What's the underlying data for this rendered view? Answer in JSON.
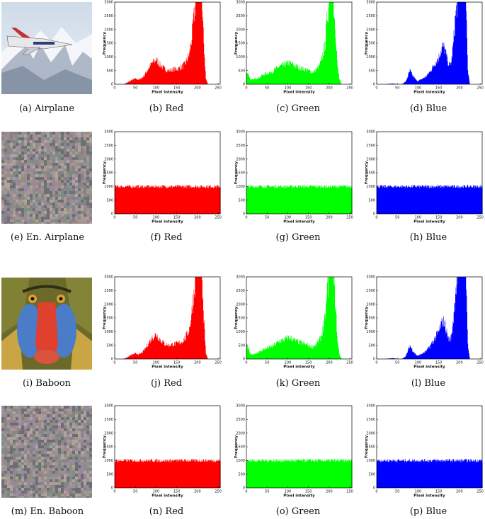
{
  "captions": {
    "row1": [
      "(a) Airplane",
      "(b) Red",
      "(c) Green",
      "(d) Blue"
    ],
    "row2": [
      "(e) En. Airplane",
      "(f) Red",
      "(g) Green",
      "(h) Blue"
    ],
    "row3": [
      "(i) Baboon",
      "(j) Red",
      "(k) Green",
      "(l) Blue"
    ],
    "row4": [
      "(m) En. Baboon",
      "(n) Red",
      "(o) Green",
      "(p) Blue"
    ]
  },
  "axes": {
    "xlabel": "Pixel intensity",
    "ylabel": "Frequency",
    "xticks": [
      "0",
      "50",
      "100",
      "150",
      "200",
      "250"
    ],
    "yticks": [
      "0",
      "500",
      "1000",
      "1500",
      "2000",
      "2500",
      "3000"
    ]
  },
  "colors": {
    "red": "#ff0000",
    "green": "#00ff00",
    "blue": "#0000ff"
  },
  "images": {
    "airplane": "airplane-photo",
    "baboon": "baboon-photo",
    "encrypted": "noise-image"
  },
  "chart_data": [
    {
      "type": "area",
      "id": "b",
      "title": "(b) Red",
      "xlim": [
        0,
        255
      ],
      "ylim": [
        0,
        3000
      ],
      "x": [
        0,
        20,
        30,
        40,
        50,
        60,
        70,
        80,
        90,
        100,
        110,
        120,
        130,
        140,
        150,
        160,
        170,
        180,
        185,
        190,
        195,
        200,
        205,
        210,
        215,
        220,
        225,
        230,
        255
      ],
      "y": [
        0,
        0,
        60,
        150,
        200,
        170,
        300,
        550,
        780,
        900,
        700,
        560,
        500,
        540,
        560,
        620,
        750,
        1100,
        1600,
        2300,
        3000,
        3000,
        3000,
        3000,
        1500,
        200,
        0,
        0,
        0
      ]
    },
    {
      "type": "area",
      "id": "c",
      "title": "(c) Green",
      "xlim": [
        0,
        255
      ],
      "ylim": [
        0,
        3000
      ],
      "x": [
        0,
        5,
        10,
        20,
        30,
        40,
        50,
        60,
        70,
        80,
        90,
        100,
        110,
        120,
        130,
        140,
        150,
        160,
        170,
        180,
        190,
        195,
        200,
        205,
        210,
        215,
        220,
        225,
        230,
        235,
        255
      ],
      "y": [
        500,
        350,
        150,
        200,
        250,
        350,
        400,
        450,
        550,
        650,
        700,
        780,
        750,
        650,
        600,
        550,
        500,
        450,
        550,
        800,
        1500,
        2500,
        3000,
        3000,
        3000,
        2000,
        600,
        150,
        0,
        0,
        0
      ]
    },
    {
      "type": "area",
      "id": "d",
      "title": "(d) Blue",
      "xlim": [
        0,
        255
      ],
      "ylim": [
        0,
        3000
      ],
      "x": [
        0,
        20,
        30,
        40,
        50,
        60,
        70,
        75,
        80,
        85,
        90,
        95,
        100,
        110,
        120,
        130,
        140,
        150,
        155,
        160,
        165,
        170,
        175,
        180,
        185,
        190,
        195,
        200,
        205,
        210,
        215,
        220,
        225,
        230,
        255
      ],
      "y": [
        0,
        0,
        20,
        30,
        0,
        0,
        100,
        300,
        500,
        350,
        250,
        150,
        120,
        200,
        300,
        500,
        750,
        1000,
        1250,
        1400,
        1250,
        900,
        700,
        800,
        1500,
        2500,
        3000,
        3000,
        3000,
        3000,
        3000,
        500,
        0,
        0,
        0
      ]
    },
    {
      "type": "area",
      "id": "f",
      "title": "(f) Red",
      "xlim": [
        0,
        255
      ],
      "ylim": [
        0,
        3000
      ],
      "x": [
        0,
        255
      ],
      "y": [
        1000,
        1000
      ]
    },
    {
      "type": "area",
      "id": "g",
      "title": "(g) Green",
      "xlim": [
        0,
        255
      ],
      "ylim": [
        0,
        3000
      ],
      "x": [
        0,
        255
      ],
      "y": [
        1000,
        1000
      ]
    },
    {
      "type": "area",
      "id": "h",
      "title": "(h) Blue",
      "xlim": [
        0,
        255
      ],
      "ylim": [
        0,
        3000
      ],
      "x": [
        0,
        255
      ],
      "y": [
        1000,
        1000
      ]
    },
    {
      "type": "area",
      "id": "j",
      "title": "(j) Red",
      "xlim": [
        0,
        255
      ],
      "ylim": [
        0,
        3000
      ],
      "x": [
        0,
        20,
        30,
        40,
        50,
        60,
        70,
        80,
        90,
        100,
        110,
        120,
        130,
        140,
        150,
        160,
        170,
        180,
        185,
        190,
        195,
        200,
        205,
        210,
        215,
        220,
        225,
        230,
        255
      ],
      "y": [
        0,
        0,
        60,
        150,
        200,
        170,
        300,
        550,
        780,
        900,
        700,
        560,
        500,
        540,
        560,
        620,
        750,
        1100,
        1600,
        2300,
        3000,
        3000,
        3000,
        3000,
        1500,
        200,
        0,
        0,
        0
      ]
    },
    {
      "type": "area",
      "id": "k",
      "title": "(k) Green",
      "xlim": [
        0,
        255
      ],
      "ylim": [
        0,
        3000
      ],
      "x": [
        0,
        5,
        10,
        20,
        30,
        40,
        50,
        60,
        70,
        80,
        90,
        100,
        110,
        120,
        130,
        140,
        150,
        160,
        170,
        180,
        190,
        195,
        200,
        205,
        210,
        215,
        220,
        225,
        230,
        235,
        255
      ],
      "y": [
        500,
        350,
        150,
        200,
        250,
        350,
        400,
        450,
        550,
        650,
        700,
        780,
        750,
        650,
        600,
        550,
        500,
        450,
        550,
        800,
        1500,
        2500,
        3000,
        3000,
        3000,
        2000,
        600,
        150,
        0,
        0,
        0
      ]
    },
    {
      "type": "area",
      "id": "l",
      "title": "(l) Blue",
      "xlim": [
        0,
        255
      ],
      "ylim": [
        0,
        3000
      ],
      "x": [
        0,
        20,
        30,
        40,
        50,
        60,
        70,
        75,
        80,
        85,
        90,
        95,
        100,
        110,
        120,
        130,
        140,
        150,
        155,
        160,
        165,
        170,
        175,
        180,
        185,
        190,
        195,
        200,
        205,
        210,
        215,
        220,
        225,
        230,
        255
      ],
      "y": [
        0,
        0,
        20,
        30,
        0,
        0,
        100,
        300,
        500,
        350,
        250,
        150,
        120,
        200,
        300,
        500,
        750,
        1000,
        1250,
        1400,
        1250,
        900,
        700,
        800,
        1500,
        2500,
        3000,
        3000,
        3000,
        3000,
        3000,
        500,
        0,
        0,
        0
      ]
    },
    {
      "type": "area",
      "id": "n",
      "title": "(n) Red",
      "xlim": [
        0,
        255
      ],
      "ylim": [
        0,
        3000
      ],
      "x": [
        0,
        255
      ],
      "y": [
        1000,
        1000
      ]
    },
    {
      "type": "area",
      "id": "o",
      "title": "(o) Green",
      "xlim": [
        0,
        255
      ],
      "ylim": [
        0,
        3000
      ],
      "x": [
        0,
        255
      ],
      "y": [
        1000,
        1000
      ]
    },
    {
      "type": "area",
      "id": "p",
      "title": "(p) Blue",
      "xlim": [
        0,
        255
      ],
      "ylim": [
        0,
        3000
      ],
      "x": [
        0,
        255
      ],
      "y": [
        1000,
        1000
      ]
    }
  ]
}
